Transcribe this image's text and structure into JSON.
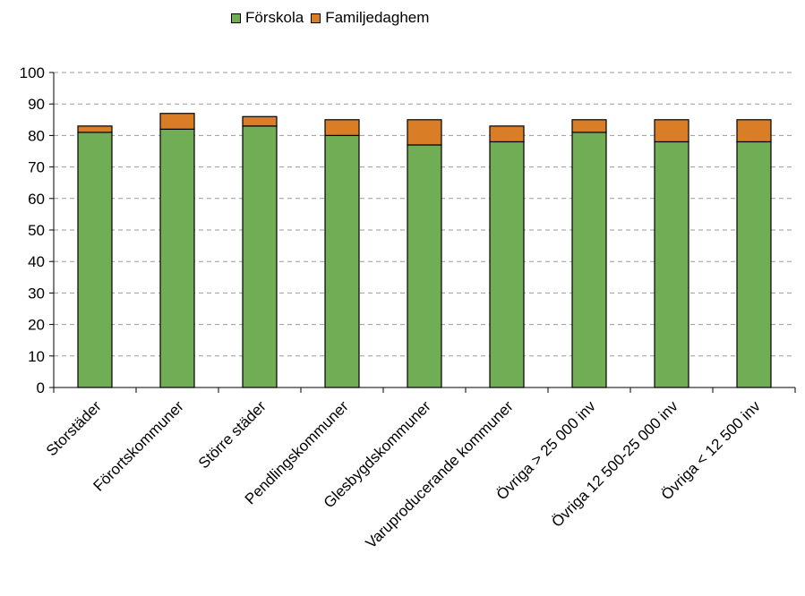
{
  "chart_data": {
    "type": "bar",
    "stacked": true,
    "categories": [
      "Storstäder",
      "Förortskommuner",
      "Större städer",
      "Pendlingskommuner",
      "Glesbygdskommuner",
      "Varuproducerande kommuner",
      "Övriga > 25 000 inv",
      "Övriga 12 500-25 000 inv",
      "Övriga < 12 500 inv"
    ],
    "series": [
      {
        "name": "Förskola",
        "color": "#70AD55",
        "values": [
          81,
          82,
          83,
          80,
          77,
          78,
          81,
          78,
          78
        ]
      },
      {
        "name": "Familjedaghem",
        "color": "#D97D27",
        "values": [
          2,
          5,
          3,
          5,
          8,
          5,
          4,
          7,
          7
        ]
      }
    ],
    "ylim": [
      0,
      100
    ],
    "yticks": [
      0,
      10,
      20,
      30,
      40,
      50,
      60,
      70,
      80,
      90,
      100
    ],
    "grid": true,
    "legend_position": "top-center",
    "title": "",
    "xlabel": "",
    "ylabel": ""
  }
}
